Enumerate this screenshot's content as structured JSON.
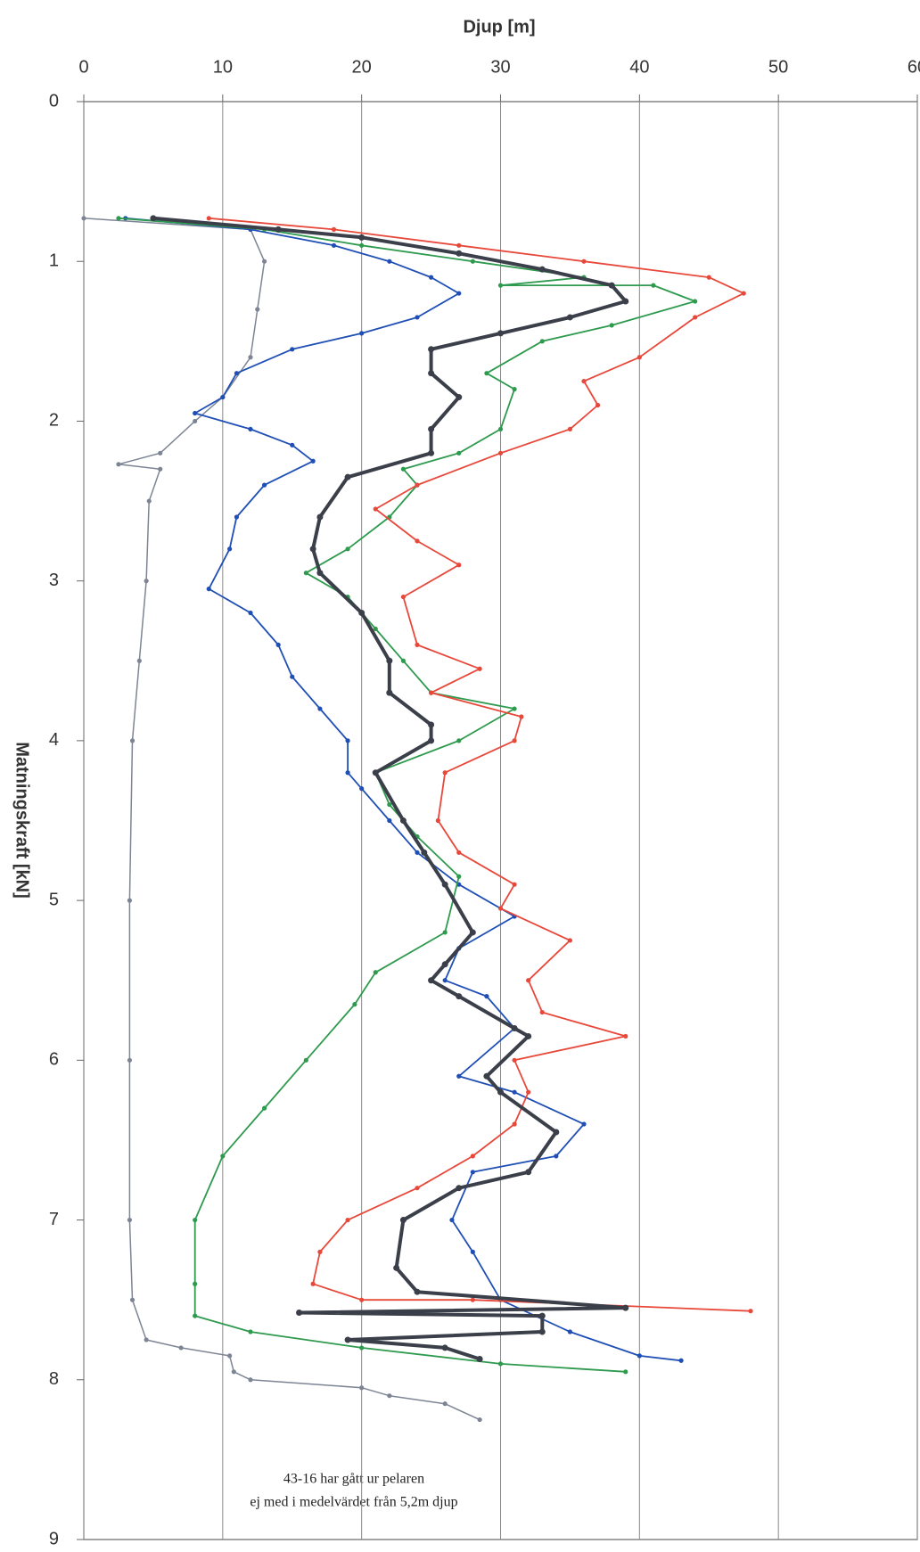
{
  "chart_data": {
    "type": "line",
    "x_label": "Djup [m]",
    "y_label": "Matningskraft [kN]",
    "xlim": [
      0,
      60
    ],
    "xticks": [
      0,
      10,
      20,
      30,
      40,
      50,
      60
    ],
    "ylim": [
      0,
      9
    ],
    "yticks": [
      0,
      1,
      2,
      3,
      4,
      5,
      6,
      7,
      8,
      9
    ],
    "y_inverted": true,
    "grid": "x",
    "annotations": [
      "43-16 har gått ur pelaren",
      "ej med i medelvärdet från 5,2m djup"
    ],
    "series": [
      {
        "color": "#7d8595",
        "width": 1.5,
        "x": [
          0,
          12,
          13,
          12.5,
          12,
          10,
          8,
          5.5,
          2.5,
          5.5,
          4.7,
          4.5,
          4,
          3.5,
          3.3,
          3.3,
          3.3,
          3.5,
          4.5,
          7,
          10.5,
          10.8,
          12,
          20,
          22,
          26,
          28.5
        ],
        "y": [
          0.73,
          0.8,
          1.0,
          1.3,
          1.6,
          1.85,
          2.0,
          2.2,
          2.27,
          2.3,
          2.5,
          3.0,
          3.5,
          4.0,
          5.0,
          6.0,
          7.0,
          7.5,
          7.75,
          7.8,
          7.85,
          7.95,
          8.0,
          8.05,
          8.1,
          8.15,
          8.25
        ]
      },
      {
        "color": "#1f4fb5",
        "width": 1.8,
        "x": [
          3,
          12,
          18,
          22,
          25,
          27,
          24,
          20,
          15,
          11,
          10,
          8,
          12,
          15,
          16.5,
          13,
          11,
          10.5,
          9,
          12,
          14,
          15,
          17,
          19,
          19,
          20,
          22,
          24,
          27,
          31,
          27,
          26,
          29,
          31,
          27,
          31,
          36,
          34,
          28,
          26.5,
          28,
          30,
          35,
          40,
          43
        ],
        "y": [
          0.73,
          0.8,
          0.9,
          1.0,
          1.1,
          1.2,
          1.35,
          1.45,
          1.55,
          1.7,
          1.85,
          1.95,
          2.05,
          2.15,
          2.25,
          2.4,
          2.6,
          2.8,
          3.05,
          3.2,
          3.4,
          3.6,
          3.8,
          4.0,
          4.2,
          4.3,
          4.5,
          4.7,
          4.9,
          5.1,
          5.3,
          5.5,
          5.6,
          5.8,
          6.1,
          6.2,
          6.4,
          6.6,
          6.7,
          7.0,
          7.2,
          7.5,
          7.7,
          7.85,
          7.88
        ]
      },
      {
        "color": "#2e9a4e",
        "width": 1.8,
        "x": [
          2.5,
          13,
          20,
          28,
          36,
          30,
          41,
          44,
          38,
          33,
          29,
          31,
          30,
          27,
          23,
          24,
          22,
          19,
          16,
          19,
          21,
          23,
          25,
          31,
          27,
          21,
          22,
          24,
          27,
          26,
          21,
          19.5,
          16,
          13,
          10,
          8,
          8,
          8,
          12,
          20,
          30,
          39
        ],
        "y": [
          0.73,
          0.8,
          0.9,
          1.0,
          1.1,
          1.15,
          1.15,
          1.25,
          1.4,
          1.5,
          1.7,
          1.8,
          2.05,
          2.2,
          2.3,
          2.4,
          2.6,
          2.8,
          2.95,
          3.1,
          3.3,
          3.5,
          3.7,
          3.8,
          4.0,
          4.2,
          4.4,
          4.6,
          4.85,
          5.2,
          5.45,
          5.65,
          6.0,
          6.3,
          6.6,
          7.0,
          7.4,
          7.6,
          7.7,
          7.8,
          7.9,
          7.95
        ]
      },
      {
        "color": "#e8483a",
        "width": 1.8,
        "x": [
          9,
          18,
          27,
          36,
          45,
          47.5,
          44,
          40,
          36,
          37,
          35,
          30,
          24,
          21,
          24,
          27,
          23,
          24,
          28.5,
          25,
          31.5,
          31,
          26,
          25.5,
          27,
          31,
          30,
          35,
          32,
          33,
          39,
          31,
          32,
          31,
          28,
          24,
          19,
          17,
          16.5,
          20,
          28,
          48
        ],
        "y": [
          0.73,
          0.8,
          0.9,
          1.0,
          1.1,
          1.2,
          1.35,
          1.6,
          1.75,
          1.9,
          2.05,
          2.2,
          2.4,
          2.55,
          2.75,
          2.9,
          3.1,
          3.4,
          3.55,
          3.7,
          3.85,
          4.0,
          4.2,
          4.5,
          4.7,
          4.9,
          5.05,
          5.25,
          5.5,
          5.7,
          5.85,
          6.0,
          6.2,
          6.4,
          6.6,
          6.8,
          7.0,
          7.2,
          7.4,
          7.5,
          7.5,
          7.57
        ]
      },
      {
        "color": "#3b3f4a",
        "width": 4,
        "x": [
          5,
          14,
          20,
          27,
          33,
          38,
          39,
          35,
          30,
          25,
          25,
          27,
          25,
          25,
          19,
          17,
          16.5,
          17,
          20,
          22,
          22,
          25,
          25,
          21,
          23,
          24.5,
          26,
          28,
          26,
          25,
          27,
          31,
          32,
          29,
          30,
          34,
          32,
          27,
          23,
          22.5,
          24,
          39,
          15.5,
          33,
          33,
          19,
          26,
          28.5
        ],
        "y": [
          0.73,
          0.8,
          0.85,
          0.95,
          1.05,
          1.15,
          1.25,
          1.35,
          1.45,
          1.55,
          1.7,
          1.85,
          2.05,
          2.2,
          2.35,
          2.6,
          2.8,
          2.95,
          3.2,
          3.5,
          3.7,
          3.9,
          4.0,
          4.2,
          4.5,
          4.7,
          4.9,
          5.2,
          5.4,
          5.5,
          5.6,
          5.8,
          5.85,
          6.1,
          6.2,
          6.45,
          6.7,
          6.8,
          7.0,
          7.3,
          7.45,
          7.55,
          7.58,
          7.6,
          7.7,
          7.75,
          7.8,
          7.87
        ]
      }
    ]
  }
}
